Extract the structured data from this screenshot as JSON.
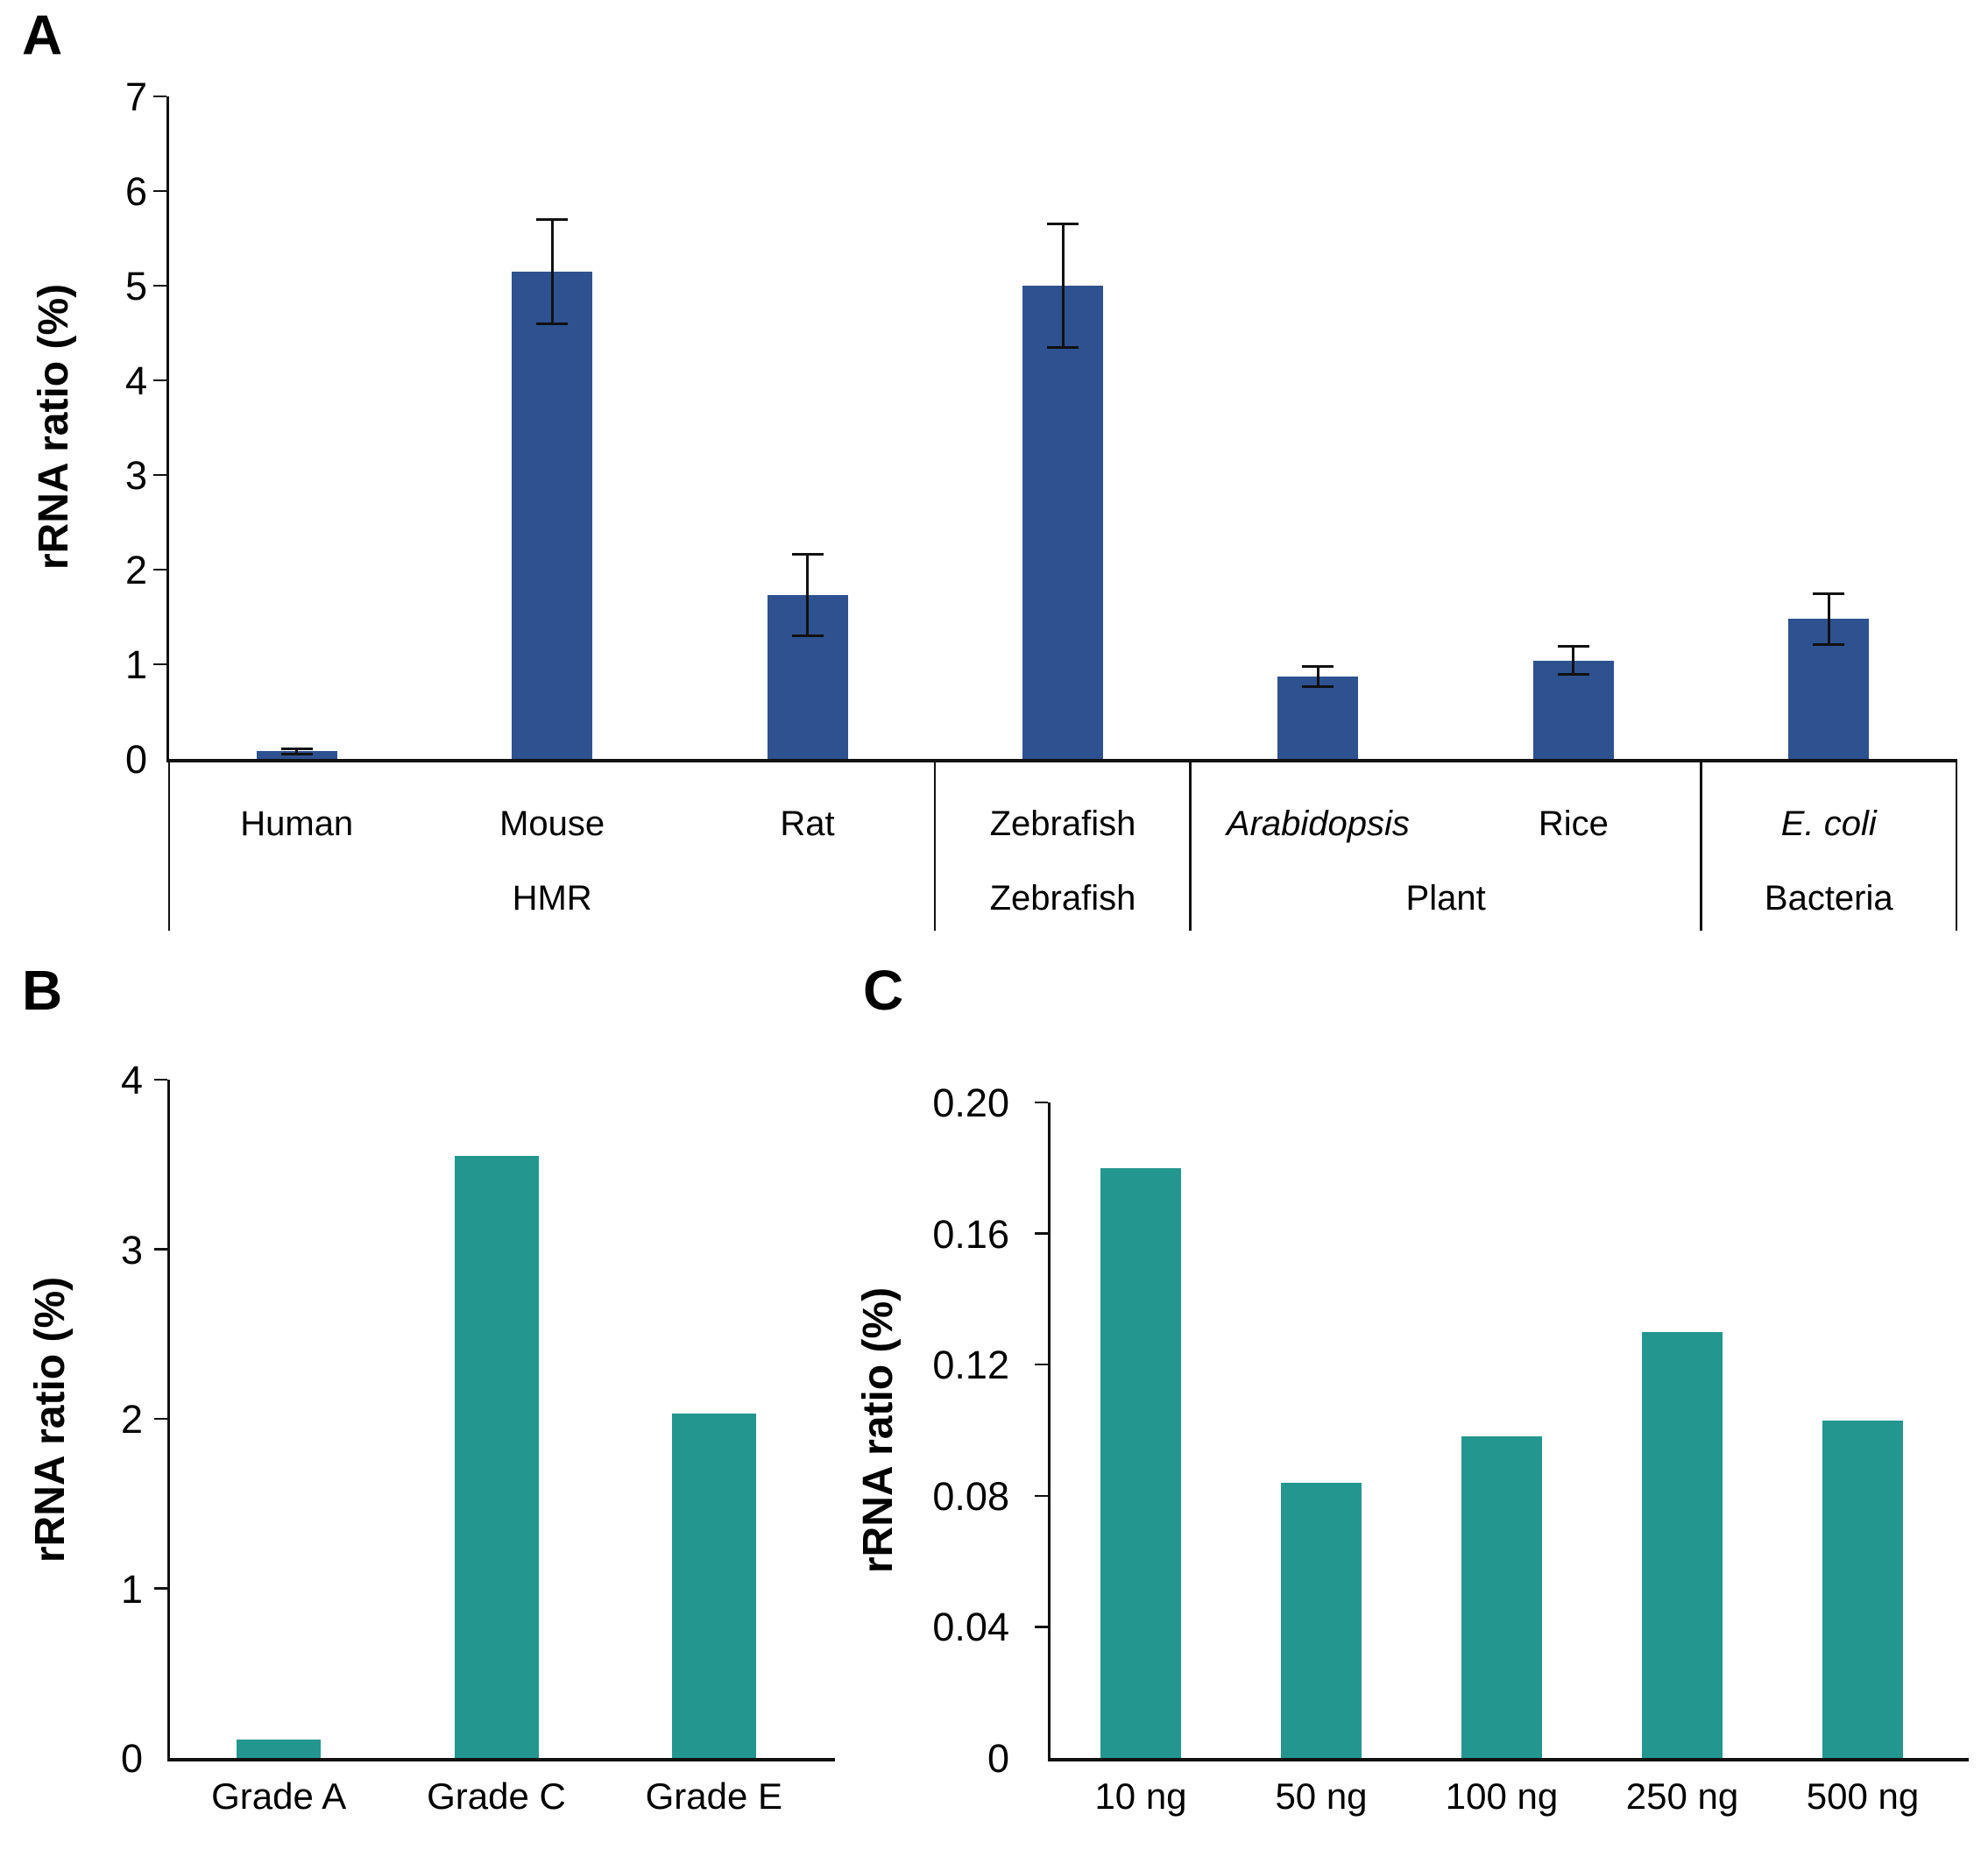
{
  "figure": {
    "background": "#ffffff",
    "axis_color": "#111111",
    "text_color": "#000000"
  },
  "chart_data": [
    {
      "id": "A",
      "type": "bar",
      "panel": "A",
      "ylabel": "rRNA ratio (%)",
      "ylim": [
        0,
        7
      ],
      "yticks": [
        "0",
        "1",
        "2",
        "3",
        "4",
        "5",
        "6",
        "7"
      ],
      "grid": false,
      "legend": null,
      "bar_color": "#2e5290",
      "categories": [
        {
          "label": "Human",
          "italic": false
        },
        {
          "label": "Mouse",
          "italic": false
        },
        {
          "label": "Rat",
          "italic": false
        },
        {
          "label": "Zebrafish",
          "italic": false
        },
        {
          "label": "Arabidopsis",
          "italic": true
        },
        {
          "label": "Rice",
          "italic": false
        },
        {
          "label": "E. coli",
          "italic": true
        }
      ],
      "values": [
        0.08,
        5.15,
        1.73,
        5.0,
        0.87,
        1.04,
        1.48
      ],
      "errors": [
        0.03,
        0.55,
        0.43,
        0.65,
        0.11,
        0.15,
        0.27
      ],
      "groups": [
        {
          "label": "HMR",
          "from": 0,
          "to": 3
        },
        {
          "label": "Zebrafish",
          "from": 3,
          "to": 4
        },
        {
          "label": "Plant",
          "from": 4,
          "to": 6
        },
        {
          "label": "Bacteria",
          "from": 6,
          "to": 7
        }
      ]
    },
    {
      "id": "B",
      "type": "bar",
      "panel": "B",
      "ylabel": "rRNA ratio (%)",
      "ylim": [
        0,
        4
      ],
      "yticks": [
        "0",
        "1",
        "2",
        "3",
        "4"
      ],
      "grid": false,
      "legend": null,
      "bar_color": "#23978f",
      "categories": [
        {
          "label": "Grade A",
          "italic": false
        },
        {
          "label": "Grade C",
          "italic": false
        },
        {
          "label": "Grade E",
          "italic": false
        }
      ],
      "values": [
        0.11,
        3.55,
        2.03
      ],
      "errors": null,
      "groups": null
    },
    {
      "id": "C",
      "type": "bar",
      "panel": "C",
      "ylabel": "rRNA ratio (%)",
      "ylim": [
        0,
        0.2
      ],
      "yticks": [
        "0",
        "0.04",
        "0.08",
        "0.12",
        "0.16",
        "0.20"
      ],
      "grid": false,
      "legend": null,
      "bar_color": "#23978f",
      "categories": [
        {
          "label": "10 ng",
          "italic": false
        },
        {
          "label": "50 ng",
          "italic": false
        },
        {
          "label": "100 ng",
          "italic": false
        },
        {
          "label": "250 ng",
          "italic": false
        },
        {
          "label": "500 ng",
          "italic": false
        }
      ],
      "values": [
        0.18,
        0.084,
        0.098,
        0.13,
        0.103
      ],
      "errors": null,
      "groups": null
    }
  ]
}
